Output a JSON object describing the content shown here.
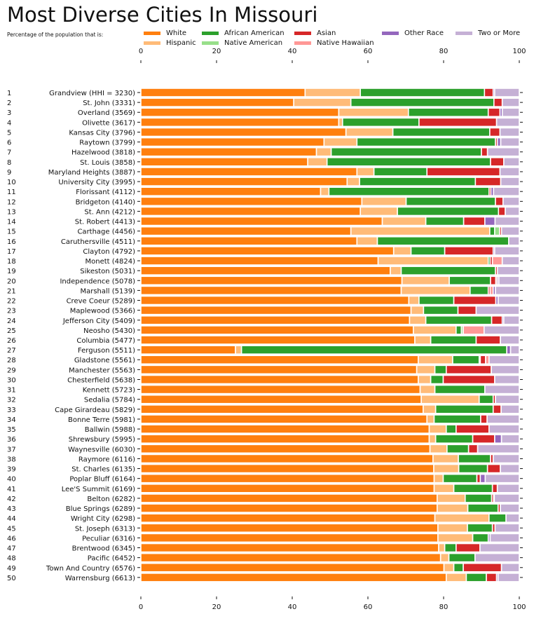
{
  "chart_data": {
    "type": "bar",
    "orientation": "horizontal",
    "stacked": true,
    "title": "Most Diverse Cities In Missouri",
    "subtitle": "Percentage of the population that is:",
    "xlim": [
      0,
      100
    ],
    "xticks": [
      "0",
      "20",
      "40",
      "60",
      "80",
      "100"
    ],
    "grid": false,
    "legend_position": "top",
    "ranks": [
      "1",
      "2",
      "3",
      "4",
      "5",
      "6",
      "7",
      "8",
      "9",
      "10",
      "11",
      "12",
      "13",
      "14",
      "15",
      "16",
      "17",
      "18",
      "19",
      "20",
      "21",
      "22",
      "23",
      "24",
      "25",
      "26",
      "27",
      "28",
      "29",
      "30",
      "31",
      "32",
      "33",
      "34",
      "35",
      "36",
      "37",
      "38",
      "39",
      "40",
      "41",
      "42",
      "43",
      "44",
      "45",
      "46",
      "47",
      "48",
      "49",
      "50"
    ],
    "categories": [
      "Grandview (HHI = 3230)",
      "St. John (3331)",
      "Overland (3569)",
      "Olivette (3617)",
      "Kansas City (3796)",
      "Raytown (3799)",
      "Hazelwood (3818)",
      "St. Louis (3858)",
      "Maryland Heights (3887)",
      "University City (3995)",
      "Florissant (4112)",
      "Bridgeton (4140)",
      "St. Ann (4212)",
      "St. Robert (4413)",
      "Carthage (4456)",
      "Caruthersville (4511)",
      "Clayton (4792)",
      "Monett (4824)",
      "Sikeston (5031)",
      "Independence (5078)",
      "Marshall (5139)",
      "Creve Coeur (5289)",
      "Maplewood (5366)",
      "Jefferson City (5409)",
      "Neosho (5430)",
      "Columbia (5477)",
      "Ferguson (5511)",
      "Gladstone (5561)",
      "Manchester (5563)",
      "Chesterfield (5638)",
      "Kennett (5723)",
      "Sedalia (5784)",
      "Cape Girardeau (5829)",
      "Bonne Terre (5981)",
      "Ballwin (5988)",
      "Shrewsbury (5995)",
      "Waynesville (6030)",
      "Raymore (6116)",
      "St. Charles (6135)",
      "Poplar Bluff (6164)",
      "Lee'S Summit (6169)",
      "Belton (6282)",
      "Blue Springs (6289)",
      "Wright City (6298)",
      "St. Joseph (6313)",
      "Peculiar (6316)",
      "Brentwood (6345)",
      "Pacific (6452)",
      "Town And Country (6576)",
      "Warrensburg (6613)"
    ],
    "series": [
      {
        "name": "White",
        "color": "#ff7f0e",
        "values": [
          43.4,
          40.4,
          52.3,
          52.3,
          54.2,
          48.4,
          46.4,
          44.1,
          57.1,
          54.5,
          47.5,
          58.4,
          58.0,
          63.8,
          55.5,
          57.1,
          66.8,
          62.7,
          65.9,
          69.0,
          68.8,
          70.8,
          71.4,
          71.0,
          72.0,
          72.4,
          25.0,
          73.3,
          72.9,
          73.3,
          73.8,
          74.1,
          74.6,
          75.6,
          76.2,
          76.2,
          76.4,
          77.2,
          77.4,
          77.5,
          77.5,
          78.3,
          78.3,
          77.7,
          78.5,
          78.5,
          78.7,
          79.2,
          80.1,
          80.7
        ]
      },
      {
        "name": "Hispanic",
        "color": "#ffbb78",
        "values": [
          14.6,
          15.1,
          18.4,
          1.0,
          12.4,
          8.7,
          3.9,
          5.1,
          4.5,
          3.3,
          2.2,
          11.7,
          9.8,
          11.5,
          36.7,
          5.4,
          4.6,
          29.1,
          2.9,
          12.5,
          18.2,
          2.7,
          3.3,
          4.3,
          11.3,
          4.2,
          1.6,
          9.1,
          4.8,
          3.3,
          3.9,
          15.3,
          3.3,
          1.9,
          4.5,
          1.7,
          4.5,
          6.7,
          6.6,
          2.4,
          5.2,
          7.4,
          8.1,
          14.3,
          7.8,
          9.2,
          1.6,
          2.2,
          2.6,
          5.3
        ]
      },
      {
        "name": "African American",
        "color": "#2ca02c",
        "values": [
          32.8,
          37.8,
          21.1,
          20.2,
          25.6,
          36.6,
          39.7,
          43.2,
          14.0,
          30.6,
          42.3,
          23.6,
          26.7,
          10.0,
          1.3,
          34.7,
          8.9,
          0.5,
          24.9,
          10.9,
          4.8,
          9.2,
          9.1,
          17.4,
          1.4,
          12.0,
          70.1,
          7.0,
          3.0,
          3.3,
          13.2,
          3.7,
          15.2,
          12.3,
          2.6,
          9.8,
          5.7,
          8.5,
          7.6,
          8.9,
          10.2,
          7.0,
          8.0,
          4.5,
          6.6,
          4.1,
          3.0,
          6.9,
          2.5,
          5.3
        ]
      },
      {
        "name": "Native American",
        "color": "#98df8a",
        "values": [
          0,
          0,
          0,
          0,
          0,
          0,
          0,
          0,
          0,
          0,
          0,
          0,
          0,
          0,
          1.3,
          0,
          0,
          0,
          0,
          0,
          0,
          0,
          0,
          0,
          0.5,
          0,
          0,
          0.3,
          0,
          0,
          0,
          0,
          0,
          0,
          0,
          0,
          0,
          0,
          0,
          0,
          0,
          0,
          0,
          0,
          0,
          0,
          0,
          0,
          0,
          0
        ]
      },
      {
        "name": "Asian",
        "color": "#d62728",
        "values": [
          2.3,
          2.2,
          3.1,
          20.5,
          2.7,
          0.5,
          1.6,
          3.5,
          19.3,
          6.7,
          0.5,
          2.0,
          1.8,
          5.6,
          0.5,
          0,
          12.8,
          0.6,
          0.5,
          1.4,
          0.5,
          11.1,
          4.8,
          2.8,
          0,
          6.4,
          0,
          1.4,
          11.9,
          13.6,
          0,
          0.6,
          2.1,
          1.7,
          8.7,
          5.8,
          2.4,
          0.7,
          3.4,
          0.9,
          1.3,
          0.5,
          0.6,
          0,
          0.7,
          0,
          6.3,
          0,
          10.1,
          2.7
        ]
      },
      {
        "name": "Native Hawaiian",
        "color": "#ff9896",
        "values": [
          0,
          0,
          0,
          0,
          0,
          0,
          0,
          0,
          0,
          0,
          0,
          0,
          0,
          0,
          0,
          0,
          0,
          2.6,
          0,
          0.4,
          0.8,
          0,
          0,
          0,
          5.5,
          0,
          0,
          0.9,
          0,
          0,
          0,
          0,
          0,
          0,
          0,
          0,
          0,
          0,
          0,
          0,
          0,
          0,
          0,
          0,
          0,
          0,
          0,
          0,
          0,
          0
        ]
      },
      {
        "name": "Other Race",
        "color": "#9467bd",
        "values": [
          0.4,
          0,
          0.6,
          0,
          0,
          0.9,
          0,
          0,
          0,
          0,
          0.7,
          0,
          0,
          2.7,
          0,
          0,
          0.4,
          0,
          0,
          0.4,
          0.6,
          0.6,
          0,
          0.4,
          0,
          0,
          1.0,
          0,
          0,
          0,
          0,
          0,
          0,
          0,
          0,
          1.8,
          0,
          0,
          0,
          1.3,
          0,
          0.2,
          0,
          0,
          0,
          0.5,
          0,
          0,
          0,
          0.4
        ]
      },
      {
        "name": "Two or More",
        "color": "#c5b0d5",
        "values": [
          6.5,
          4.5,
          4.5,
          6.0,
          5.1,
          4.9,
          8.4,
          4.1,
          5.1,
          4.9,
          6.8,
          4.3,
          3.7,
          6.4,
          4.7,
          2.8,
          6.5,
          4.5,
          5.8,
          5.4,
          6.3,
          5.6,
          11.4,
          4.1,
          9.3,
          5.0,
          2.3,
          8.0,
          7.4,
          6.5,
          9.1,
          6.3,
          4.8,
          8.5,
          8.0,
          4.7,
          11.0,
          6.9,
          5.0,
          9.0,
          5.8,
          6.6,
          5.0,
          3.5,
          6.4,
          7.7,
          10.4,
          11.7,
          4.7,
          5.6
        ]
      }
    ]
  }
}
